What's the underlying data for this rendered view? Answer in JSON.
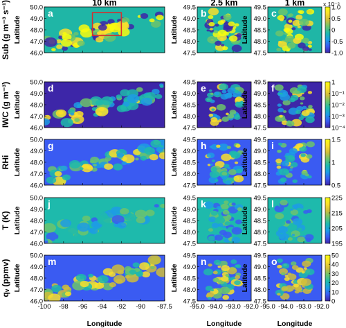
{
  "chart_data": {
    "type": "heatmap",
    "column_titles": [
      "10 km",
      "2.5 km",
      "1 km"
    ],
    "row_labels": [
      "Sub (g m⁻³ s⁻¹)",
      "IWC (g m⁻³)",
      "RHi",
      "T (K)",
      "qᵥ (ppmv)"
    ],
    "ylabel": "Latitude",
    "xlabel": "Longitude",
    "panel_letters": [
      "a",
      "b",
      "c",
      "d",
      "e",
      "f",
      "g",
      "h",
      "i",
      "j",
      "k",
      "l",
      "m",
      "n",
      "o"
    ],
    "col0": {
      "xlim": [
        -100,
        -87.5
      ],
      "xticks": [
        "-100",
        "-98",
        "-96",
        "-94",
        "-92",
        "-90",
        "-87.5"
      ],
      "ylim": [
        46.0,
        50.0
      ],
      "yticks": [
        "46.0",
        "47.0",
        "48.0",
        "49.0",
        "50.0"
      ]
    },
    "col12": {
      "xlim": [
        -95.0,
        -92.0
      ],
      "xticks": [
        "-95.0",
        "-94.0",
        "-93.0",
        "-92.0"
      ],
      "ylim": [
        47.5,
        49.5
      ],
      "yticks": [
        "47.5",
        "48.0",
        "48.5",
        "49.0",
        "49.5"
      ]
    },
    "zoom_box": {
      "lon": [
        -95.0,
        -92.0
      ],
      "lat": [
        47.5,
        49.5
      ],
      "color": "#d32f2f"
    },
    "colorbars": [
      {
        "row": 0,
        "ticks": [
          "1.0",
          "0.5",
          "0",
          "-0.5",
          "-1.0"
        ],
        "multiplier": "x 10⁻⁵",
        "range": [
          -1.0,
          1.0
        ]
      },
      {
        "row": 1,
        "ticks": [
          "1",
          "10⁻¹",
          "10⁻²",
          "10⁻³",
          "10⁻⁴"
        ],
        "scale": "log",
        "range": [
          0.0001,
          1
        ]
      },
      {
        "row": 2,
        "ticks": [
          "1.5",
          "1",
          "0.5"
        ],
        "range": [
          0.3,
          1.7
        ]
      },
      {
        "row": 3,
        "ticks": [
          "225",
          "215",
          "205",
          "195"
        ],
        "range": [
          195,
          225
        ]
      },
      {
        "row": 4,
        "ticks": [
          "50",
          "40",
          "30",
          "20",
          "10",
          "0"
        ],
        "range": [
          0,
          50
        ]
      }
    ],
    "colormap": [
      "#3d26a8",
      "#3a5bf2",
      "#1d9ce4",
      "#1ebaac",
      "#6cc46c",
      "#cfbd3b",
      "#f9df2b",
      "#f9fb0e"
    ]
  }
}
